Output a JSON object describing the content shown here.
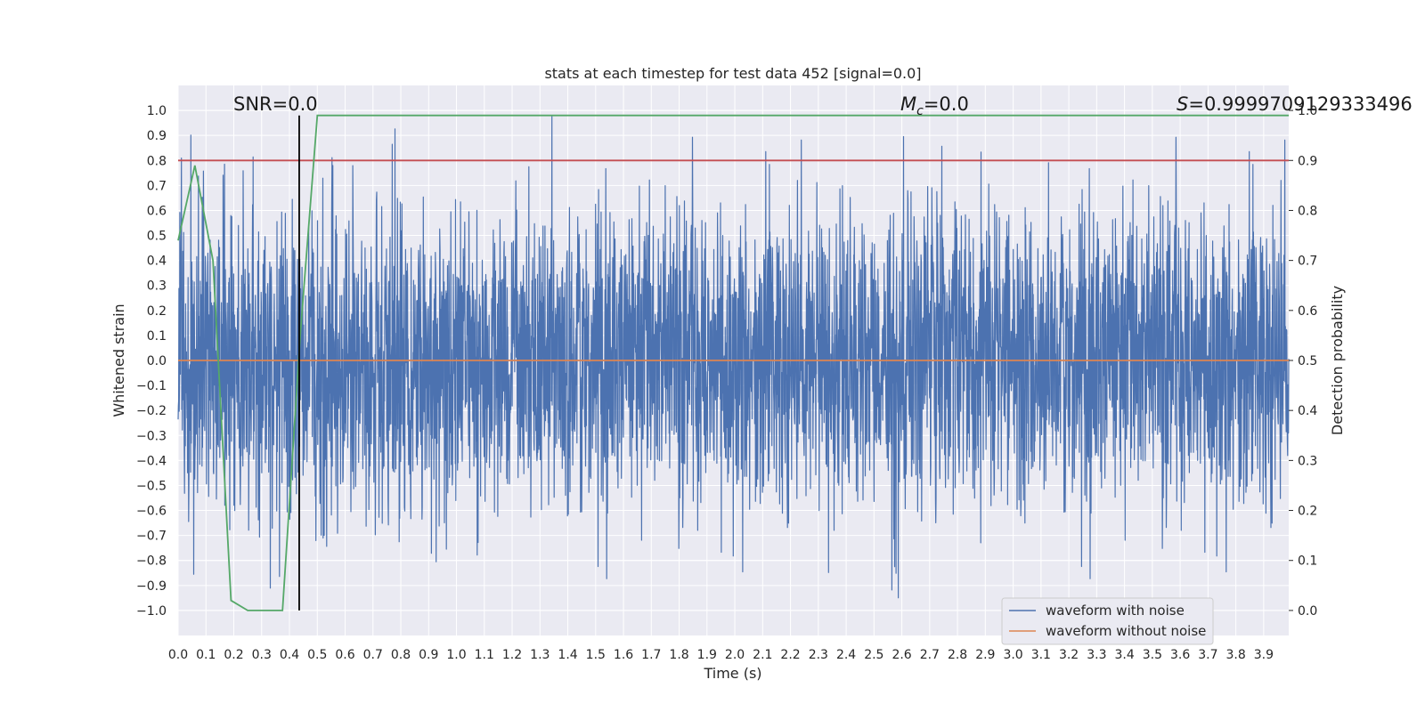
{
  "chart_data": {
    "type": "line",
    "title": "stats at each timestep for test data 452 [signal=0.0]",
    "xlabel": "Time (s)",
    "ylabel": "Whitened strain",
    "ylabel_right": "Detection probability",
    "xlim": [
      0.0,
      3.99
    ],
    "ylim": [
      -1.1,
      1.1
    ],
    "ylim_right": [
      -0.05,
      1.05
    ],
    "xticks": [
      "0.0",
      "0.1",
      "0.2",
      "0.3",
      "0.4",
      "0.5",
      "0.6",
      "0.7",
      "0.8",
      "0.9",
      "1.0",
      "1.1",
      "1.2",
      "1.3",
      "1.4",
      "1.5",
      "1.6",
      "1.7",
      "1.8",
      "1.9",
      "2.0",
      "2.1",
      "2.2",
      "2.3",
      "2.4",
      "2.5",
      "2.6",
      "2.7",
      "2.8",
      "2.9",
      "3.0",
      "3.1",
      "3.2",
      "3.3",
      "3.4",
      "3.5",
      "3.6",
      "3.7",
      "3.8",
      "3.9"
    ],
    "yticks": [
      "1.0",
      "0.9",
      "0.8",
      "0.7",
      "0.6",
      "0.5",
      "0.4",
      "0.3",
      "0.2",
      "0.1",
      "0.0",
      "−0.1",
      "−0.2",
      "−0.3",
      "−0.4",
      "−0.5",
      "−0.6",
      "−0.7",
      "−0.8",
      "−0.9",
      "−1.0"
    ],
    "yticks_right": [
      "1.0",
      "0.9",
      "0.8",
      "0.7",
      "0.6",
      "0.5",
      "0.4",
      "0.3",
      "0.2",
      "0.1",
      "0.0"
    ],
    "grid": true,
    "legend": {
      "placement": "lower-right",
      "entries": [
        "waveform with noise",
        "waveform without noise"
      ]
    },
    "series": [
      {
        "name": "waveform with noise",
        "axis": "left",
        "color": "#4c72b0",
        "description": "dense noise signal, approx. range -1.0 to 1.0 over 0-4 s",
        "noise_amplitude_range": [
          -1.0,
          0.98
        ]
      },
      {
        "name": "waveform without noise",
        "axis": "left",
        "color": "#dd8452",
        "x": [
          0.0,
          3.99
        ],
        "y": [
          0.0,
          0.0
        ]
      },
      {
        "name": "detection probability",
        "axis": "right",
        "color": "#55a868",
        "x": [
          0.0,
          0.06,
          0.125,
          0.19,
          0.25,
          0.31,
          0.375,
          0.44,
          0.5,
          3.99
        ],
        "y": [
          0.74,
          0.89,
          0.7,
          0.02,
          0.0,
          0.0,
          0.0,
          0.56,
          0.99,
          0.99
        ]
      },
      {
        "name": "threshold",
        "axis": "right",
        "color": "#c44e52",
        "x": [
          0.0,
          3.99
        ],
        "y": [
          0.9,
          0.9
        ]
      }
    ],
    "vertical_line": {
      "x": 0.435,
      "ymin": -1.0,
      "ymax": 0.98,
      "color": "#000000"
    },
    "annotations": {
      "snr": "SNR=0.0",
      "mc_symbol": "M",
      "mc_sub": "c",
      "mc_value": "=0.0",
      "s_symbol": "S",
      "s_value": "=0.9999709129333496"
    }
  }
}
